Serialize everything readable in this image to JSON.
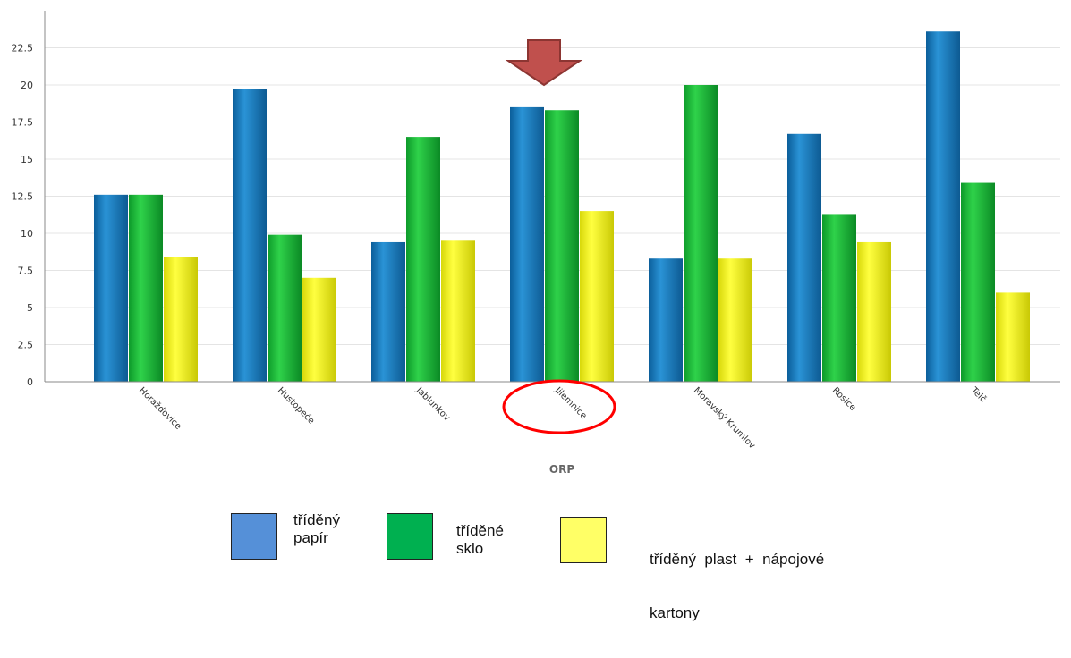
{
  "chart_data": {
    "type": "bar",
    "xlabel": "ORP",
    "ylabel": "",
    "ylim": [
      0,
      25
    ],
    "yticks": [
      "0",
      "2.5",
      "5",
      "7.5",
      "10",
      "12.5",
      "15",
      "17.5",
      "20",
      "22.5"
    ],
    "grid": true,
    "categories": [
      "Horažďovice",
      "Hustopeče",
      "Jablunkov",
      "Jilemnice",
      "Moravský Krumlov",
      "Rosice",
      "Telč"
    ],
    "series": [
      {
        "name": "tříděný papír",
        "color": "#1f7fc0",
        "values": [
          12.6,
          19.7,
          9.4,
          18.5,
          8.3,
          16.7,
          23.6
        ]
      },
      {
        "name": "tříděné sklo",
        "color": "#1fb83a",
        "values": [
          12.6,
          9.9,
          16.5,
          18.3,
          20.0,
          11.3,
          13.4
        ]
      },
      {
        "name": "tříděný plast + nápojové kartony",
        "color": "#f2f21a",
        "values": [
          8.4,
          7.0,
          9.5,
          11.5,
          8.3,
          9.4,
          6.0
        ]
      }
    ],
    "annotations": [
      "arrow-above-jilemnice",
      "circle-around-jilemnice"
    ]
  },
  "legend": {
    "items": [
      {
        "line1": "tříděný",
        "line2": "papír",
        "color": "#5590d8"
      },
      {
        "line1": "tříděné",
        "line2": "sklo",
        "color": "#00b050"
      },
      {
        "line1": "tříděný  plast  +  nápojové",
        "line2": "kartony",
        "color": "#ffff66"
      }
    ]
  }
}
